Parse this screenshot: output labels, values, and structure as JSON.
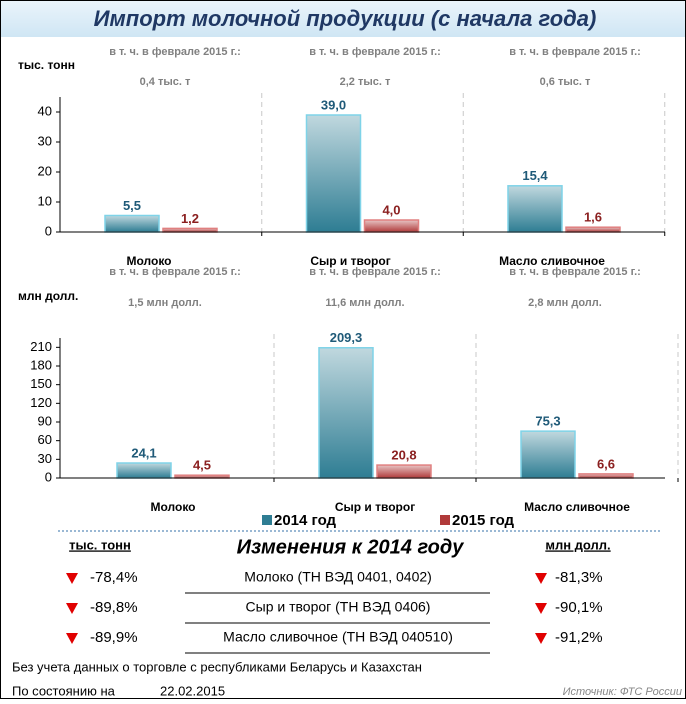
{
  "title": "Импорт молочной продукции (с начала года)",
  "chart_data": [
    {
      "type": "bar",
      "y_label": "тыс. тонн",
      "annotations": [
        {
          "label": "в т. ч. в феврале 2015 г.:",
          "text": "0,4  тыс. т"
        },
        {
          "label": "в т. ч. в феврале 2015 г.:",
          "text": "2,2  тыс. т"
        },
        {
          "label": "в т. ч. в феврале 2015 г.:",
          "text": "0,6  тыс. т"
        }
      ],
      "categories": [
        "Молоко",
        "Сыр и творог",
        "Масло сливочное"
      ],
      "series": [
        {
          "name": "2014 год",
          "color": "#2e7d93",
          "values": [
            5.5,
            39.0,
            15.4
          ],
          "value_labels": [
            "5,5",
            "39,0",
            "15,4"
          ]
        },
        {
          "name": "2015 год",
          "color": "#b03a3a",
          "values": [
            1.2,
            4.0,
            1.6
          ],
          "value_labels": [
            "1,2",
            "4,0",
            "1,6"
          ]
        }
      ],
      "ylim": [
        0,
        45
      ],
      "yticks": [
        0,
        10,
        20,
        30,
        40
      ]
    },
    {
      "type": "bar",
      "y_label": "млн долл.",
      "annotations": [
        {
          "label": "в т. ч. в феврале 2015 г.:",
          "text": "1,5  млн долл."
        },
        {
          "label": "в т. ч. в феврале 2015 г.:",
          "text": "11,6  млн долл."
        },
        {
          "label": "в т. ч. в феврале 2015 г.:",
          "text": "2,8  млн долл."
        }
      ],
      "categories": [
        "Молоко",
        "Сыр и творог",
        "Масло сливочное"
      ],
      "series": [
        {
          "color": "#2e7d93",
          "values": [
            24.1,
            209.3,
            75.3
          ],
          "value_labels": [
            "24,1",
            "209,3",
            "75,3"
          ]
        },
        {
          "color": "#b03a3a",
          "values": [
            4.5,
            20.8,
            6.6
          ],
          "value_labels": [
            "4,5",
            "20,8",
            "6,6"
          ]
        }
      ],
      "ylim": [
        0,
        225
      ],
      "yticks": [
        0,
        30,
        60,
        90,
        120,
        150,
        180,
        210
      ]
    }
  ],
  "changes": {
    "title": "Изменения к 2014 году",
    "left_header": "тыс. тонн",
    "right_header": "млн долл.",
    "rows": [
      {
        "left": "-78,4%",
        "name": "Молоко (ТН ВЭД 0401, 0402)",
        "right": "-81,3%"
      },
      {
        "left": "-89,8%",
        "name": "Сыр и творог (ТН ВЭД 0406)",
        "right": "-90,1%"
      },
      {
        "left": "-89,9%",
        "name": "Масло сливочное (ТН ВЭД 040510)",
        "right": "-91,2%"
      }
    ]
  },
  "footnote": "Без учета данных о торговле с республиками Беларусь и Казахстан",
  "as_of_label": "По состоянию на",
  "as_of_date": "22.02.2015",
  "source": "Источник: ФТС России"
}
